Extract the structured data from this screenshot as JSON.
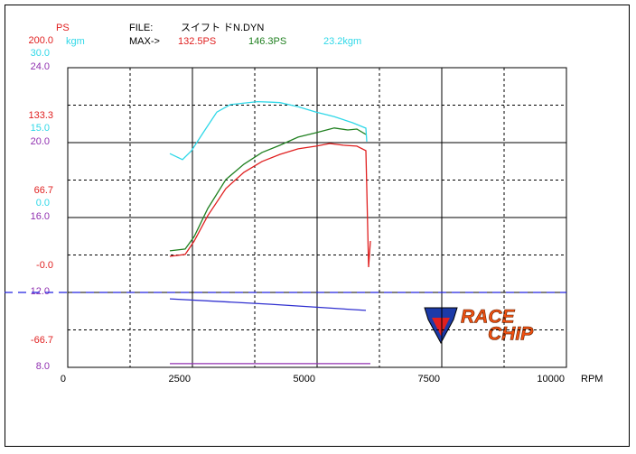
{
  "chart_data": {
    "type": "line",
    "header": {
      "file_label": "FILE:",
      "file_name": "スイフト ドN.DYN",
      "max_label": "MAX->"
    },
    "x_label": "RPM",
    "y_label": "PS",
    "y2_label": "kgm",
    "xlim": [
      0,
      10000
    ],
    "xticks": [
      0,
      2500,
      5000,
      7500,
      10000
    ],
    "ylim": [
      -66.7,
      200
    ],
    "yticks": [
      {
        "value": 200,
        "label": "200.0"
      },
      133.3,
      66.7,
      {
        "value": 0,
        "label": "-0.0"
      },
      -66.7
    ],
    "y2lim": [
      -30,
      30
    ],
    "y2ticks": [
      {
        "value": 30,
        "label": "30.0"
      },
      {
        "value": 15,
        "label": "15.0"
      },
      {
        "value": 0,
        "label": "0.0"
      }
    ],
    "y3lim": [
      8,
      24
    ],
    "y3ticks": [
      {
        "value": 24,
        "label": "24.0"
      },
      {
        "value": 20,
        "label": "20.0"
      },
      {
        "value": 16,
        "label": "16.0"
      },
      {
        "value": 12,
        "label": "12.0"
      },
      {
        "value": 8,
        "label": "8.0"
      }
    ],
    "grid": true,
    "reference_lines": [
      {
        "value": 12,
        "axis": "y3",
        "color": "#2020e0"
      }
    ],
    "series": [
      {
        "color": "#e02020",
        "axis": "y",
        "max_label": "132.5PS",
        "x": [
          2047,
          2355,
          2536,
          2808,
          3170,
          3533,
          3895,
          4257,
          4620,
          4982,
          5254,
          5525,
          5797,
          5978,
          5996,
          6033,
          6069
        ],
        "values": [
          32.1,
          33.8,
          45.8,
          68.3,
          92.4,
          106.9,
          116.5,
          122.9,
          127.8,
          130.2,
          132.5,
          131.0,
          130.2,
          126.2,
          92.4,
          22.5,
          45.8
        ]
      },
      {
        "color": "#208020",
        "axis": "y",
        "max_label": "146.3PS",
        "x": [
          2047,
          2355,
          2536,
          2808,
          3170,
          3533,
          3895,
          4257,
          4620,
          4982,
          5344,
          5616,
          5797,
          5978
        ],
        "values": [
          37.0,
          38.6,
          49.8,
          74.7,
          100.5,
          114.1,
          124.6,
          131.0,
          138.2,
          142.2,
          146.3,
          144.6,
          145.4,
          140.6
        ]
      },
      {
        "color": "#30d8e8",
        "axis": "y2",
        "max_label": "23.2kgm",
        "x": [
          2047,
          2300,
          2482,
          2717,
          2989,
          3261,
          3804,
          4076,
          4257,
          4620,
          4982,
          5344,
          5707,
          5978,
          5996
        ],
        "values": [
          12.8,
          11.6,
          13.4,
          17.0,
          21.1,
          22.6,
          23.2,
          23.1,
          23.0,
          22.2,
          21.1,
          20.2,
          19.0,
          17.9,
          15.2
        ]
      },
      {
        "color": "#3030d0",
        "axis": "y3",
        "x": [
          2047,
          4076,
          5978
        ],
        "values": [
          11.66,
          11.37,
          11.04
        ]
      },
      {
        "color": "#9030b0",
        "axis": "y3",
        "x": [
          2047,
          6069
        ],
        "values": [
          8.2,
          8.2
        ]
      }
    ],
    "logo": {
      "line1": "RACE",
      "line2": "CHIP"
    }
  }
}
